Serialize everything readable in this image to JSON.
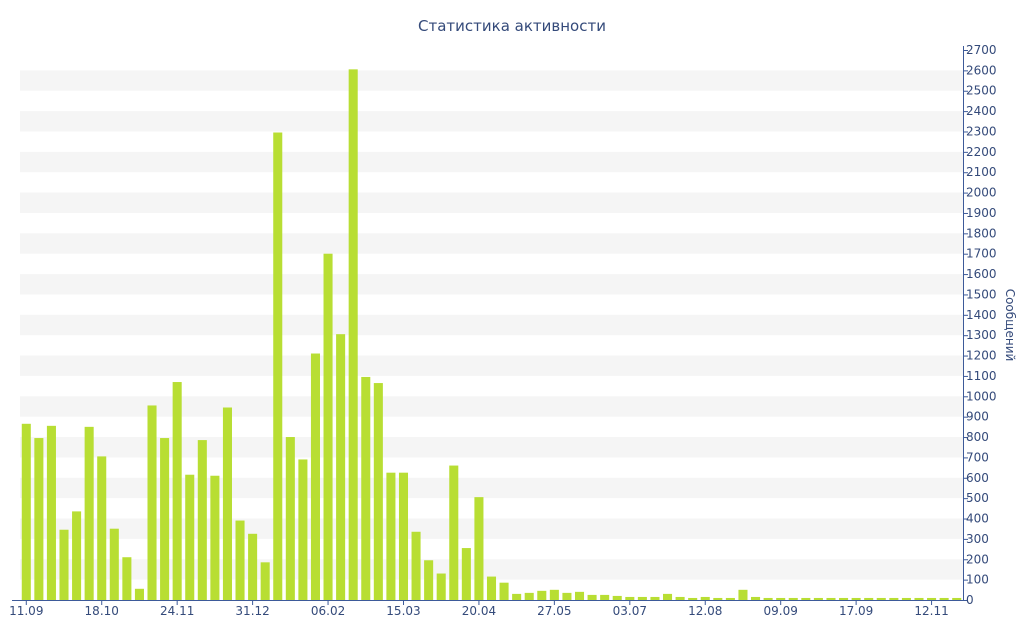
{
  "chart_data": {
    "type": "bar",
    "title": "Статистика активности",
    "ylabel": "Сообщений",
    "ylim": [
      0,
      2700
    ],
    "y_ticks": [
      0,
      100,
      200,
      300,
      400,
      500,
      600,
      700,
      800,
      900,
      1000,
      1100,
      1200,
      1300,
      1400,
      1500,
      1600,
      1700,
      1800,
      1900,
      2000,
      2100,
      2200,
      2300,
      2400,
      2500,
      2600,
      2700
    ],
    "x_tick_labels": [
      {
        "label": "11.09",
        "index": 0
      },
      {
        "label": "18.10",
        "index": 6
      },
      {
        "label": "24.11",
        "index": 12
      },
      {
        "label": "31.12",
        "index": 18
      },
      {
        "label": "06.02",
        "index": 24
      },
      {
        "label": "15.03",
        "index": 30
      },
      {
        "label": "20.04",
        "index": 36
      },
      {
        "label": "27.05",
        "index": 42
      },
      {
        "label": "03.07",
        "index": 48
      },
      {
        "label": "12.08",
        "index": 54
      },
      {
        "label": "09.09",
        "index": 60
      },
      {
        "label": "17.09",
        "index": 66
      },
      {
        "label": "12.11",
        "index": 72
      }
    ],
    "values": [
      865,
      795,
      855,
      345,
      435,
      850,
      705,
      350,
      210,
      55,
      955,
      795,
      1070,
      615,
      785,
      610,
      945,
      390,
      325,
      185,
      2295,
      800,
      690,
      1210,
      1700,
      1305,
      2605,
      1095,
      1065,
      625,
      625,
      335,
      195,
      130,
      660,
      255,
      505,
      115,
      85,
      30,
      35,
      45,
      50,
      35,
      40,
      25,
      25,
      20,
      15,
      15,
      15,
      30,
      15,
      10,
      15,
      10,
      10,
      50,
      15,
      10,
      10,
      10,
      10,
      10,
      10,
      10,
      10,
      10,
      10,
      10,
      10,
      10,
      10,
      10,
      10
    ],
    "grid": true,
    "legend": "none",
    "colors": {
      "bar": "#b8de33",
      "text": "#344a7a",
      "axis": "#3d5a99",
      "band": "#f5f5f5"
    }
  }
}
